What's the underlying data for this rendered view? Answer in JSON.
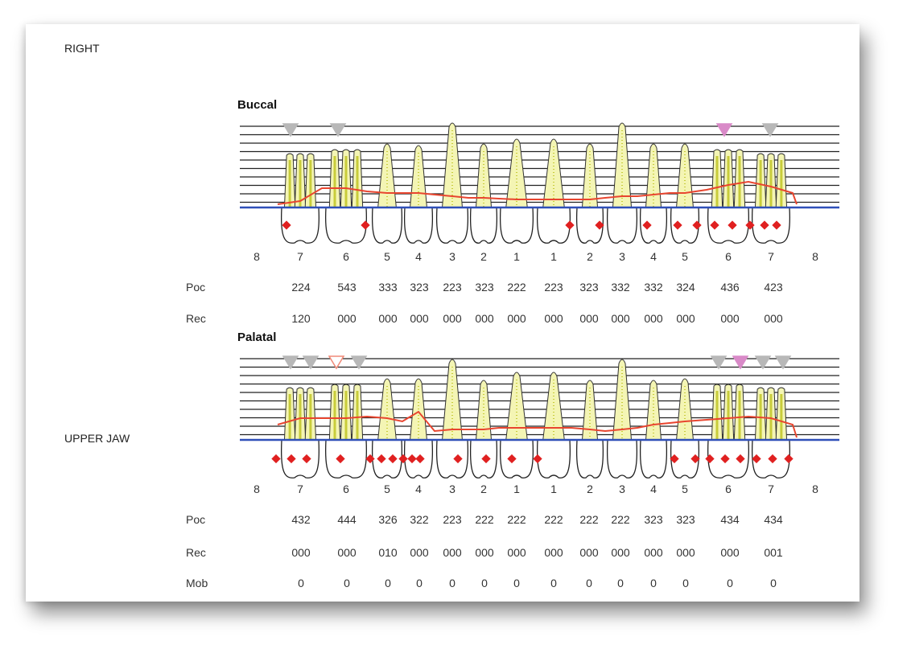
{
  "header": {
    "side_label": "RIGHT",
    "jaw_label": "UPPER JAW"
  },
  "buccal": {
    "title": "Buccal",
    "tooth_numbers": [
      "8",
      "7",
      "6",
      "5",
      "4",
      "3",
      "2",
      "1",
      "1",
      "2",
      "3",
      "4",
      "5",
      "6",
      "7",
      "8"
    ],
    "row_labels": {
      "poc": "Poc",
      "rec": "Rec"
    },
    "poc": [
      "224",
      "543",
      "333",
      "323",
      "223",
      "323",
      "222",
      "223",
      "323",
      "332",
      "332",
      "324",
      "436",
      "423"
    ],
    "rec": [
      "120",
      "000",
      "000",
      "000",
      "000",
      "000",
      "000",
      "000",
      "000",
      "000",
      "000",
      "000",
      "000",
      "000"
    ]
  },
  "palatal": {
    "title": "Palatal",
    "tooth_numbers": [
      "8",
      "7",
      "6",
      "5",
      "4",
      "3",
      "2",
      "1",
      "1",
      "2",
      "3",
      "4",
      "5",
      "6",
      "7",
      "8"
    ],
    "row_labels": {
      "poc": "Poc",
      "rec": "Rec",
      "mob": "Mob"
    },
    "poc": [
      "432",
      "444",
      "326",
      "322",
      "223",
      "222",
      "222",
      "222",
      "222",
      "222",
      "323",
      "323",
      "434",
      "434"
    ],
    "rec": [
      "000",
      "000",
      "010",
      "000",
      "000",
      "000",
      "000",
      "000",
      "000",
      "000",
      "000",
      "000",
      "000",
      "001"
    ],
    "mob": [
      "0",
      "0",
      "0",
      "0",
      "0",
      "0",
      "0",
      "0",
      "0",
      "0",
      "0",
      "0",
      "0",
      "0"
    ]
  },
  "colors": {
    "tooth_fill": "#f4f5b4",
    "tooth_dark": "#c8cc3a",
    "gingival_line": "#e8452f",
    "bone_line": "#2f4fb8",
    "bleeding_dot": "#e02020",
    "marker_gray": "#b8b8b8",
    "marker_pink": "#d98ac8",
    "marker_red": "#f08a78"
  }
}
